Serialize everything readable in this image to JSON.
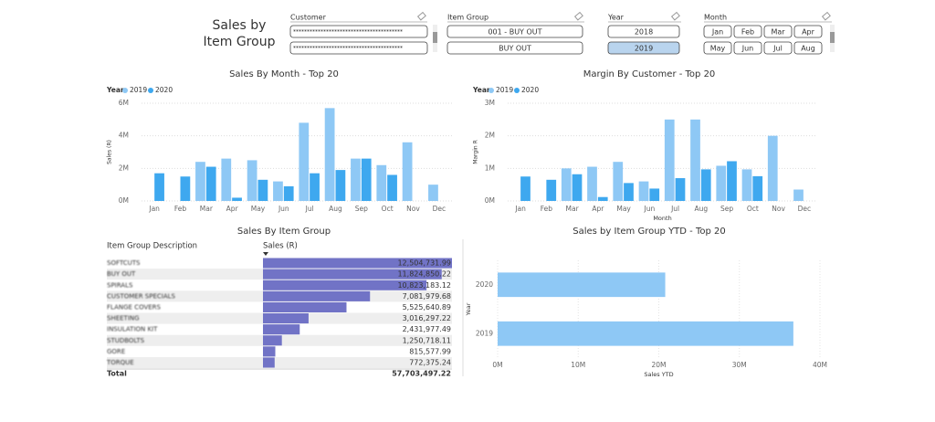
{
  "header": {
    "title": "Sales by Item Group"
  },
  "slicers": [
    {
      "label": "Customer",
      "items": [
        "****************************************",
        "****************************************"
      ],
      "selected": [
        false,
        false
      ]
    },
    {
      "label": "Item Group",
      "items": [
        "001 - BUY OUT",
        "BUY OUT"
      ],
      "selected": [
        false,
        false
      ]
    },
    {
      "label": "Year",
      "items": [
        "2018",
        "2019"
      ],
      "selected": [
        false,
        true
      ]
    },
    {
      "label": "Month",
      "items": [
        "Jan",
        "Feb",
        "Mar",
        "Apr",
        "May",
        "Jun",
        "Jul",
        "Aug"
      ],
      "selected": [
        false,
        false,
        false,
        false,
        false,
        false,
        false,
        false
      ]
    }
  ],
  "chart_data": [
    {
      "type": "bar",
      "title": "Sales By Month - Top 20",
      "legend_title": "Year",
      "y_label": "Sales (R)",
      "categories": [
        "Jan",
        "Feb",
        "Mar",
        "Apr",
        "May",
        "Jun",
        "Jul",
        "Aug",
        "Sep",
        "Oct",
        "Nov",
        "Dec"
      ],
      "series": [
        {
          "name": "2019",
          "color": "#8ec8f5",
          "values": [
            null,
            null,
            2.4,
            2.6,
            2.5,
            1.2,
            4.8,
            5.7,
            2.6,
            2.2,
            3.6,
            1.0
          ]
        },
        {
          "name": "2020",
          "color": "#3ea8ef",
          "values": [
            1.7,
            1.5,
            2.1,
            0.2,
            1.3,
            0.9,
            1.7,
            1.9,
            2.6,
            1.6,
            null,
            null
          ]
        }
      ],
      "ylim": [
        0,
        6
      ],
      "yticks": [
        {
          "value": 0,
          "label": "0M"
        },
        {
          "value": 2,
          "label": "2M"
        },
        {
          "value": 4,
          "label": "4M"
        },
        {
          "value": 6,
          "label": "6M"
        }
      ],
      "grid": true
    },
    {
      "type": "bar",
      "title": "Margin By Customer - Top 20",
      "legend_title": "Year",
      "y_label": "Margin R",
      "x_label": "Month",
      "categories": [
        "Jan",
        "Feb",
        "Mar",
        "Apr",
        "May",
        "Jun",
        "Jul",
        "Aug",
        "Sep",
        "Oct",
        "Nov",
        "Dec"
      ],
      "series": [
        {
          "name": "2019",
          "color": "#8ec8f5",
          "values": [
            null,
            null,
            1.0,
            1.05,
            1.2,
            0.6,
            2.5,
            2.5,
            1.08,
            0.97,
            2.0,
            0.35
          ]
        },
        {
          "name": "2020",
          "color": "#3ea8ef",
          "values": [
            0.75,
            0.65,
            0.82,
            0.12,
            0.55,
            0.38,
            0.7,
            0.97,
            1.22,
            0.76,
            null,
            null
          ]
        }
      ],
      "ylim": [
        0,
        3
      ],
      "yticks": [
        {
          "value": 0,
          "label": "0M"
        },
        {
          "value": 1,
          "label": "1M"
        },
        {
          "value": 2,
          "label": "2M"
        },
        {
          "value": 3,
          "label": "3M"
        }
      ],
      "grid": true
    },
    {
      "type": "table",
      "title": "Sales By Item Group",
      "columns": [
        "Item Group Description",
        "Sales (R)"
      ],
      "categories": [
        "SOFTCUTS",
        "BUY OUT",
        "SPIRALS",
        "CUSTOMER SPECIALS",
        "FLANGE COVERS",
        "SHEETING",
        "INSULATION KIT",
        "STUDBOLTS",
        "GORE",
        "TORQUE"
      ],
      "values": [
        12504731.99,
        11824850.22,
        10823183.12,
        7081979.68,
        5525640.89,
        3016297.22,
        2431977.49,
        1250718.11,
        815577.99,
        772375.24
      ],
      "value_labels": [
        "12,504,731.99",
        "11,824,850.22",
        "10,823,183.12",
        "7,081,979.68",
        "5,525,640.89",
        "3,016,297.22",
        "2,431,977.49",
        "1,250,718.11",
        "815,577.99",
        "772,375.24"
      ],
      "color": "#7173c6",
      "total_label": "Total",
      "total": 57703497.22,
      "total_value_label": "57,703,497.22"
    },
    {
      "type": "hbar",
      "title": "Sales by Item Group YTD - Top 20",
      "y_label": "Year",
      "x_label": "Sales YTD",
      "categories": [
        "2020",
        "2019"
      ],
      "values": [
        20.8,
        36.7
      ],
      "color": "#8ec8f5",
      "xlim": [
        0,
        40
      ],
      "xticks": [
        {
          "value": 0,
          "label": "0M"
        },
        {
          "value": 10,
          "label": "10M"
        },
        {
          "value": 20,
          "label": "20M"
        },
        {
          "value": 30,
          "label": "30M"
        },
        {
          "value": 40,
          "label": "40M"
        }
      ],
      "grid": true
    }
  ]
}
